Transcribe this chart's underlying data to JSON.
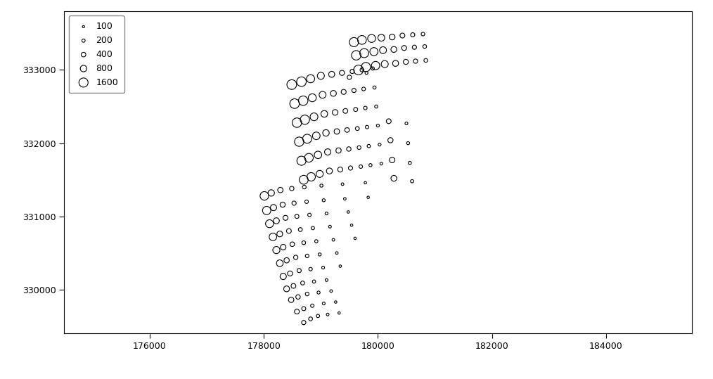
{
  "xlim": [
    174500,
    185500
  ],
  "ylim": [
    329400,
    333800
  ],
  "xticks": [
    176000,
    178000,
    180000,
    182000,
    184000
  ],
  "yticks": [
    330000,
    331000,
    332000,
    333000
  ],
  "legend_sizes": [
    100,
    200,
    400,
    800,
    1600
  ],
  "legend_labels": [
    "100",
    "200",
    "400",
    "800",
    "1600"
  ],
  "background": "#ffffff",
  "circle_edgecolor": "#000000",
  "circle_facecolor": "none",
  "linewidth": 0.8,
  "scale": 0.055,
  "points": [
    [
      178700,
      329550,
      350
    ],
    [
      178820,
      329600,
      280
    ],
    [
      178950,
      329640,
      200
    ],
    [
      179120,
      329660,
      140
    ],
    [
      179320,
      329680,
      110
    ],
    [
      178580,
      329700,
      450
    ],
    [
      178700,
      329740,
      320
    ],
    [
      178850,
      329780,
      220
    ],
    [
      179050,
      329810,
      155
    ],
    [
      179260,
      329830,
      115
    ],
    [
      178480,
      329860,
      550
    ],
    [
      178600,
      329900,
      380
    ],
    [
      178760,
      329940,
      265
    ],
    [
      178960,
      329960,
      180
    ],
    [
      179180,
      329980,
      130
    ],
    [
      178400,
      330010,
      650
    ],
    [
      178520,
      330050,
      430
    ],
    [
      178680,
      330090,
      295
    ],
    [
      178880,
      330110,
      200
    ],
    [
      179100,
      330130,
      145
    ],
    [
      178340,
      330180,
      750
    ],
    [
      178460,
      330220,
      480
    ],
    [
      178620,
      330260,
      330
    ],
    [
      178820,
      330280,
      225
    ],
    [
      179040,
      330300,
      160
    ],
    [
      179340,
      330320,
      115
    ],
    [
      178280,
      330360,
      860
    ],
    [
      178400,
      330400,
      530
    ],
    [
      178560,
      330440,
      365
    ],
    [
      178760,
      330460,
      248
    ],
    [
      178980,
      330480,
      175
    ],
    [
      179280,
      330500,
      125
    ],
    [
      178220,
      330540,
      970
    ],
    [
      178340,
      330580,
      580
    ],
    [
      178500,
      330620,
      400
    ],
    [
      178700,
      330640,
      270
    ],
    [
      178920,
      330660,
      192
    ],
    [
      179220,
      330680,
      135
    ],
    [
      179600,
      330700,
      108
    ],
    [
      178160,
      330720,
      1080
    ],
    [
      178280,
      330760,
      630
    ],
    [
      178440,
      330800,
      435
    ],
    [
      178640,
      330820,
      295
    ],
    [
      178860,
      330840,
      208
    ],
    [
      179160,
      330860,
      148
    ],
    [
      179540,
      330880,
      112
    ],
    [
      178100,
      330900,
      1200
    ],
    [
      178220,
      330940,
      680
    ],
    [
      178380,
      330980,
      470
    ],
    [
      178580,
      331000,
      320
    ],
    [
      178800,
      331020,
      225
    ],
    [
      179100,
      331040,
      160
    ],
    [
      179480,
      331060,
      118
    ],
    [
      178050,
      331080,
      1300
    ],
    [
      178170,
      331120,
      730
    ],
    [
      178330,
      331160,
      505
    ],
    [
      178530,
      331180,
      345
    ],
    [
      178750,
      331200,
      242
    ],
    [
      179050,
      331220,
      172
    ],
    [
      179420,
      331240,
      125
    ],
    [
      179830,
      331260,
      110
    ],
    [
      178010,
      331280,
      1400
    ],
    [
      178130,
      331320,
      780
    ],
    [
      178290,
      331360,
      540
    ],
    [
      178490,
      331380,
      370
    ],
    [
      178710,
      331400,
      260
    ],
    [
      179010,
      331420,
      185
    ],
    [
      179380,
      331440,
      133
    ],
    [
      179780,
      331460,
      115
    ],
    [
      178700,
      331500,
      1500
    ],
    [
      178830,
      331540,
      1350
    ],
    [
      178980,
      331580,
      950
    ],
    [
      179150,
      331620,
      680
    ],
    [
      179340,
      331640,
      480
    ],
    [
      179520,
      331660,
      340
    ],
    [
      179700,
      331680,
      240
    ],
    [
      179870,
      331700,
      185
    ],
    [
      180060,
      331720,
      140
    ],
    [
      180280,
      331520,
      650
    ],
    [
      180600,
      331480,
      200
    ],
    [
      178660,
      331760,
      1580
    ],
    [
      178790,
      331800,
      1450
    ],
    [
      178950,
      331840,
      1050
    ],
    [
      179120,
      331880,
      750
    ],
    [
      179310,
      331900,
      530
    ],
    [
      179490,
      331920,
      375
    ],
    [
      179670,
      331940,
      268
    ],
    [
      179840,
      331960,
      205
    ],
    [
      180030,
      331980,
      156
    ],
    [
      180250,
      331770,
      580
    ],
    [
      180560,
      331730,
      185
    ],
    [
      178620,
      332020,
      1650
    ],
    [
      178760,
      332060,
      1550
    ],
    [
      178920,
      332100,
      1100
    ],
    [
      179090,
      332140,
      800
    ],
    [
      179280,
      332160,
      570
    ],
    [
      179460,
      332180,
      408
    ],
    [
      179640,
      332200,
      292
    ],
    [
      179810,
      332220,
      222
    ],
    [
      180000,
      332240,
      168
    ],
    [
      180220,
      332040,
      510
    ],
    [
      180530,
      332000,
      170
    ],
    [
      178580,
      332280,
      1700
    ],
    [
      178720,
      332320,
      1650
    ],
    [
      178880,
      332360,
      1150
    ],
    [
      179060,
      332400,
      850
    ],
    [
      179250,
      332420,
      610
    ],
    [
      179430,
      332440,
      438
    ],
    [
      179610,
      332460,
      315
    ],
    [
      179780,
      332480,
      240
    ],
    [
      179970,
      332500,
      180
    ],
    [
      180190,
      332300,
      440
    ],
    [
      180500,
      332270,
      155
    ],
    [
      178540,
      332540,
      1750
    ],
    [
      178690,
      332580,
      1700
    ],
    [
      178850,
      332620,
      1200
    ],
    [
      179030,
      332660,
      900
    ],
    [
      179220,
      332680,
      650
    ],
    [
      179400,
      332700,
      470
    ],
    [
      179580,
      332720,
      338
    ],
    [
      179750,
      332740,
      258
    ],
    [
      179940,
      332760,
      194
    ],
    [
      179500,
      332900,
      350
    ],
    [
      179800,
      332960,
      170
    ],
    [
      179660,
      333000,
      1800
    ],
    [
      179790,
      333040,
      1600
    ],
    [
      179960,
      333060,
      1300
    ],
    [
      180120,
      333080,
      940
    ],
    [
      180310,
      333090,
      680
    ],
    [
      180490,
      333110,
      490
    ],
    [
      180660,
      333120,
      355
    ],
    [
      180840,
      333130,
      270
    ],
    [
      179620,
      333200,
      1700
    ],
    [
      179760,
      333230,
      1550
    ],
    [
      179930,
      333250,
      1250
    ],
    [
      180090,
      333270,
      900
    ],
    [
      180280,
      333280,
      650
    ],
    [
      180460,
      333300,
      470
    ],
    [
      180640,
      333310,
      342
    ],
    [
      180820,
      333320,
      260
    ],
    [
      179580,
      333380,
      1600
    ],
    [
      179720,
      333410,
      1480
    ],
    [
      179890,
      333430,
      1200
    ],
    [
      180060,
      333440,
      880
    ],
    [
      180250,
      333450,
      630
    ],
    [
      180430,
      333470,
      452
    ],
    [
      180610,
      333480,
      328
    ],
    [
      180790,
      333490,
      248
    ],
    [
      178490,
      332800,
      1800
    ],
    [
      178660,
      332840,
      1750
    ],
    [
      178820,
      332880,
      1250
    ],
    [
      179000,
      332920,
      940
    ],
    [
      179190,
      332940,
      680
    ],
    [
      179370,
      332960,
      490
    ],
    [
      179550,
      332980,
      352
    ],
    [
      179720,
      333000,
      268
    ],
    [
      179910,
      333020,
      202
    ]
  ]
}
